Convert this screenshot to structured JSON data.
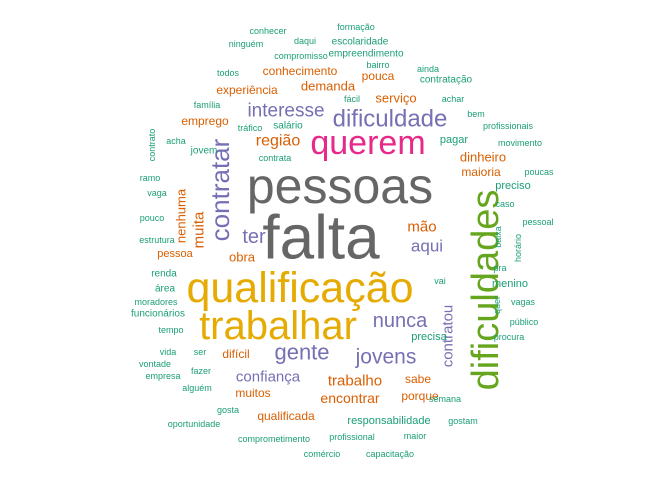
{
  "chart_data": {
    "type": "wordcloud",
    "palette": {
      "teal": "#1b9e77",
      "orange": "#d95f02",
      "purple": "#7570b3",
      "magenta": "#e7298a",
      "green": "#66a61e",
      "gold": "#e6ab02",
      "brown": "#a6761d",
      "gray": "#666666"
    },
    "words": [
      {
        "text": "falta",
        "color": "gray",
        "weight": 62
      },
      {
        "text": "pessoas",
        "color": "gray",
        "weight": 50
      },
      {
        "text": "qualificação",
        "color": "gold",
        "weight": 43
      },
      {
        "text": "trabalhar",
        "color": "gold",
        "weight": 40
      },
      {
        "text": "dificuldades",
        "color": "green",
        "weight": 38
      },
      {
        "text": "querem",
        "color": "magenta",
        "weight": 34
      },
      {
        "text": "contratar",
        "color": "purple",
        "weight": 26
      },
      {
        "text": "dificuldade",
        "color": "purple",
        "weight": 24
      },
      {
        "text": "gente",
        "color": "purple",
        "weight": 22
      },
      {
        "text": "jovens",
        "color": "purple",
        "weight": 21
      },
      {
        "text": "nunca",
        "color": "purple",
        "weight": 20
      },
      {
        "text": "ter",
        "color": "purple",
        "weight": 20
      },
      {
        "text": "interesse",
        "color": "purple",
        "weight": 19
      },
      {
        "text": "aqui",
        "color": "purple",
        "weight": 17
      },
      {
        "text": "região",
        "color": "orange",
        "weight": 16
      },
      {
        "text": "muita",
        "color": "orange",
        "weight": 15
      },
      {
        "text": "contratou",
        "color": "purple",
        "weight": 15
      },
      {
        "text": "confiança",
        "color": "purple",
        "weight": 15
      },
      {
        "text": "trabalho",
        "color": "orange",
        "weight": 15
      },
      {
        "text": "mão",
        "color": "orange",
        "weight": 15
      },
      {
        "text": "encontrar",
        "color": "orange",
        "weight": 14
      },
      {
        "text": "obra",
        "color": "orange",
        "weight": 13
      },
      {
        "text": "nenhuma",
        "color": "orange",
        "weight": 13
      },
      {
        "text": "serviço",
        "color": "orange",
        "weight": 13
      },
      {
        "text": "demanda",
        "color": "orange",
        "weight": 13
      },
      {
        "text": "dinheiro",
        "color": "orange",
        "weight": 13
      },
      {
        "text": "conhecimento",
        "color": "orange",
        "weight": 12
      },
      {
        "text": "pouca",
        "color": "orange",
        "weight": 12
      },
      {
        "text": "emprego",
        "color": "orange",
        "weight": 12
      },
      {
        "text": "experiência",
        "color": "orange",
        "weight": 12
      },
      {
        "text": "difícil",
        "color": "orange",
        "weight": 12
      },
      {
        "text": "muitos",
        "color": "orange",
        "weight": 12
      },
      {
        "text": "sabe",
        "color": "orange",
        "weight": 12
      },
      {
        "text": "maioria",
        "color": "orange",
        "weight": 12
      },
      {
        "text": "qualificada",
        "color": "orange",
        "weight": 12
      },
      {
        "text": "porque",
        "color": "orange",
        "weight": 12
      },
      {
        "text": "pessoa",
        "color": "orange",
        "weight": 11
      },
      {
        "text": "menino",
        "color": "teal",
        "weight": 11
      },
      {
        "text": "pagar",
        "color": "teal",
        "weight": 11
      },
      {
        "text": "precisa",
        "color": "teal",
        "weight": 11
      },
      {
        "text": "responsabilidade",
        "color": "teal",
        "weight": 11
      },
      {
        "text": "preciso",
        "color": "teal",
        "weight": 11
      },
      {
        "text": "renda",
        "color": "teal",
        "weight": 10
      },
      {
        "text": "área",
        "color": "teal",
        "weight": 10
      },
      {
        "text": "funcionários",
        "color": "teal",
        "weight": 10
      },
      {
        "text": "jovem",
        "color": "teal",
        "weight": 10
      },
      {
        "text": "contratação",
        "color": "teal",
        "weight": 10
      },
      {
        "text": "empreendimento",
        "color": "teal",
        "weight": 10
      },
      {
        "text": "escolaridade",
        "color": "teal",
        "weight": 10
      },
      {
        "text": "salário",
        "color": "teal",
        "weight": 10
      },
      {
        "text": "procura",
        "color": "teal",
        "weight": 9
      },
      {
        "text": "pra",
        "color": "teal",
        "weight": 9
      },
      {
        "text": "vagas",
        "color": "teal",
        "weight": 9
      },
      {
        "text": "quer",
        "color": "teal",
        "weight": 9
      },
      {
        "text": "baixa",
        "color": "teal",
        "weight": 9
      },
      {
        "text": "caso",
        "color": "teal",
        "weight": 9
      },
      {
        "text": "pessoal",
        "color": "teal",
        "weight": 9
      },
      {
        "text": "poucas",
        "color": "teal",
        "weight": 9
      },
      {
        "text": "movimento",
        "color": "teal",
        "weight": 9
      },
      {
        "text": "profissionais",
        "color": "teal",
        "weight": 9
      },
      {
        "text": "bem",
        "color": "teal",
        "weight": 9
      },
      {
        "text": "achar",
        "color": "teal",
        "weight": 9
      },
      {
        "text": "ainda",
        "color": "teal",
        "weight": 9
      },
      {
        "text": "bairro",
        "color": "teal",
        "weight": 9
      },
      {
        "text": "compromisso",
        "color": "teal",
        "weight": 9
      },
      {
        "text": "formação",
        "color": "teal",
        "weight": 9
      },
      {
        "text": "conhecer",
        "color": "teal",
        "weight": 9
      },
      {
        "text": "ninguém",
        "color": "teal",
        "weight": 9
      },
      {
        "text": "daqui",
        "color": "teal",
        "weight": 9
      },
      {
        "text": "todos",
        "color": "teal",
        "weight": 9
      },
      {
        "text": "família",
        "color": "teal",
        "weight": 9
      },
      {
        "text": "fácil",
        "color": "teal",
        "weight": 9
      },
      {
        "text": "tráfico",
        "color": "teal",
        "weight": 9
      },
      {
        "text": "acha",
        "color": "teal",
        "weight": 9
      },
      {
        "text": "contrata",
        "color": "teal",
        "weight": 9
      },
      {
        "text": "contrato",
        "color": "teal",
        "weight": 9
      },
      {
        "text": "ramo",
        "color": "teal",
        "weight": 9
      },
      {
        "text": "vaga",
        "color": "teal",
        "weight": 9
      },
      {
        "text": "pouco",
        "color": "teal",
        "weight": 9
      },
      {
        "text": "estrutura",
        "color": "teal",
        "weight": 9
      },
      {
        "text": "moradores",
        "color": "teal",
        "weight": 9
      },
      {
        "text": "tempo",
        "color": "teal",
        "weight": 9
      },
      {
        "text": "vida",
        "color": "teal",
        "weight": 9
      },
      {
        "text": "vontade",
        "color": "teal",
        "weight": 9
      },
      {
        "text": "empresa",
        "color": "teal",
        "weight": 9
      },
      {
        "text": "ser",
        "color": "teal",
        "weight": 9
      },
      {
        "text": "fazer",
        "color": "teal",
        "weight": 9
      },
      {
        "text": "alguém",
        "color": "teal",
        "weight": 9
      },
      {
        "text": "gosta",
        "color": "teal",
        "weight": 9
      },
      {
        "text": "oportunidade",
        "color": "teal",
        "weight": 9
      },
      {
        "text": "comprometimento",
        "color": "teal",
        "weight": 9
      },
      {
        "text": "profissional",
        "color": "teal",
        "weight": 9
      },
      {
        "text": "comércio",
        "color": "teal",
        "weight": 9
      },
      {
        "text": "capacitação",
        "color": "teal",
        "weight": 9
      },
      {
        "text": "maior",
        "color": "teal",
        "weight": 9
      },
      {
        "text": "gostam",
        "color": "teal",
        "weight": 9
      },
      {
        "text": "semana",
        "color": "teal",
        "weight": 9
      },
      {
        "text": "público",
        "color": "teal",
        "weight": 9
      },
      {
        "text": "horário",
        "color": "teal",
        "weight": 9
      },
      {
        "text": "vai",
        "color": "teal",
        "weight": 9
      }
    ]
  }
}
